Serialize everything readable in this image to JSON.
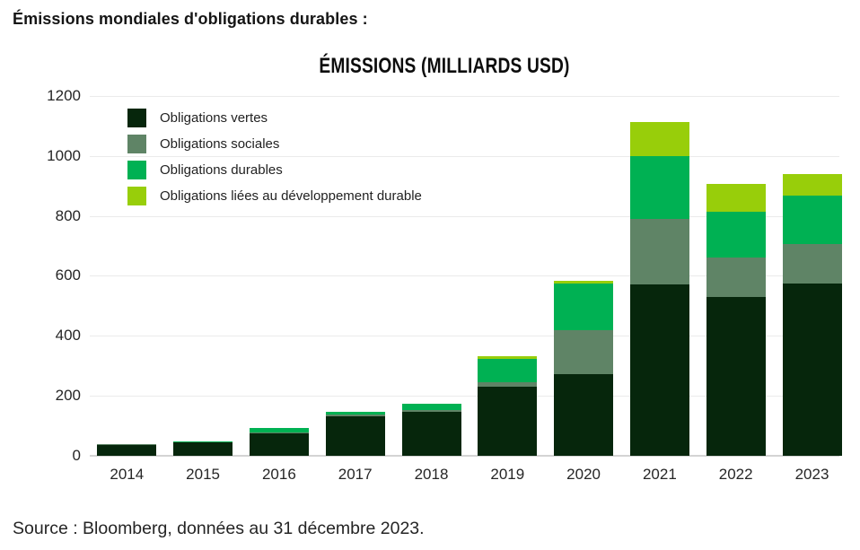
{
  "page": {
    "title": "Émissions mondiales d'obligations durables :",
    "source": "Source : Bloomberg, données au 31 décembre 2023."
  },
  "chart_data": {
    "type": "bar",
    "stacked": true,
    "title": "ÉMISSIONS (MILLIARDS USD)",
    "categories": [
      "2014",
      "2015",
      "2016",
      "2017",
      "2018",
      "2019",
      "2020",
      "2021",
      "2022",
      "2023"
    ],
    "series": [
      {
        "name": "Obligations vertes",
        "color": "#06260c",
        "values": [
          36,
          45,
          75,
          130,
          146,
          230,
          270,
          572,
          530,
          575
        ]
      },
      {
        "name": "Obligations sociales",
        "color": "#5f8466",
        "values": [
          1,
          1,
          2,
          7,
          4,
          15,
          149,
          218,
          130,
          130
        ]
      },
      {
        "name": "Obligations durables",
        "color": "#00b153",
        "values": [
          0,
          1,
          13,
          8,
          23,
          77,
          155,
          210,
          155,
          162
        ]
      },
      {
        "name": "Obligations liées au développement durable",
        "color": "#98ce0a",
        "values": [
          0,
          0,
          0,
          0,
          0,
          10,
          10,
          112,
          92,
          73
        ]
      }
    ],
    "totals": [
      37,
      47,
      90,
      145,
      173,
      332,
      584,
      1112,
      907,
      940
    ],
    "ylabel": "",
    "xlabel": "",
    "ylim": [
      0,
      1200
    ],
    "yticks": [
      0,
      200,
      400,
      600,
      800,
      1000,
      1200
    ],
    "grid": true,
    "legend_position": "inside-top-left",
    "colors": {
      "grid": "#ebebeb",
      "axis_line": "#d4d4d4",
      "text": "#262626"
    }
  }
}
